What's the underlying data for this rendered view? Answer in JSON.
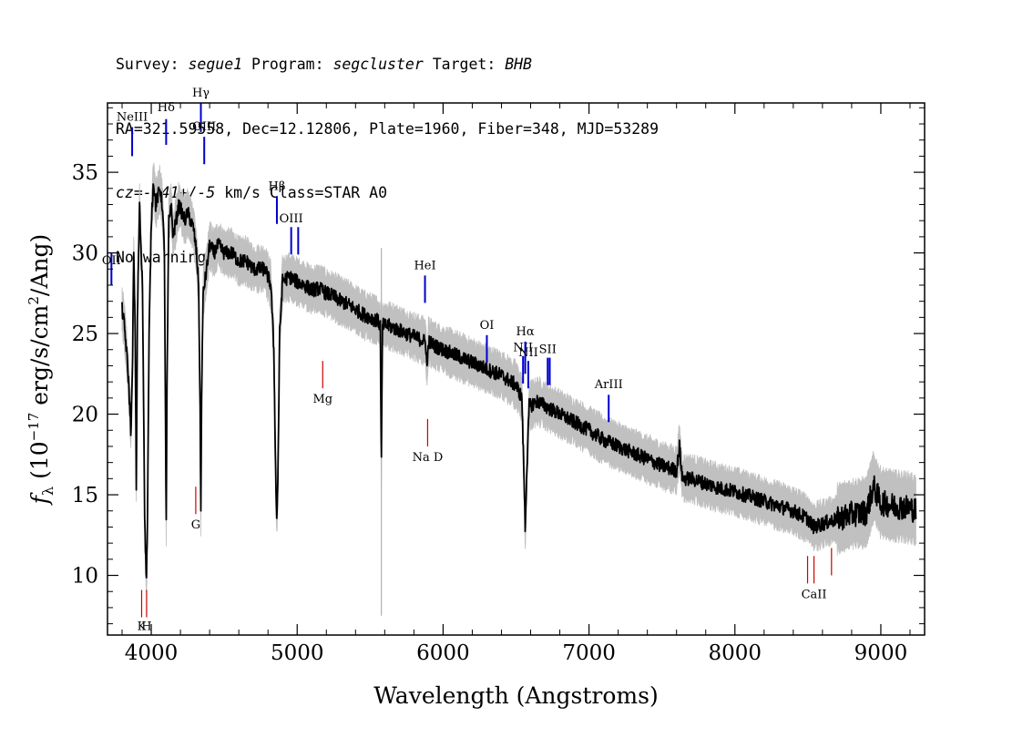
{
  "header": {
    "line1": {
      "survey_label": "Survey: ",
      "survey": "segue1",
      "program_label": " Program: ",
      "program": "segcluster",
      "target_label": " Target: ",
      "target": "BHB"
    },
    "line2": "RA=321.59558, Dec=12.12806, Plate=1960, Fiber=348, MJD=53289",
    "line3": {
      "cz": "cz=-141+/-5",
      "rest": " km/s Class=STAR A0"
    },
    "line4": "No warnings."
  },
  "chart_data": {
    "type": "line",
    "xlabel": "Wavelength (Angstroms)",
    "ylabel": "f_λ (10^-17 erg/s/cm^2/Ang)",
    "xlim": [
      3700,
      9300
    ],
    "ylim": [
      6.3,
      39.3
    ],
    "x_ticks": [
      4000,
      5000,
      6000,
      7000,
      8000,
      9000
    ],
    "y_ticks": [
      10,
      15,
      20,
      25,
      30,
      35
    ],
    "grid": false,
    "series": [
      {
        "color": "#000000",
        "points": [
          [
            3800,
            26.5
          ],
          [
            3815,
            25.5
          ],
          [
            3830,
            24
          ],
          [
            3845,
            22
          ],
          [
            3860,
            19
          ],
          [
            3870,
            22
          ],
          [
            3880,
            30
          ],
          [
            3890,
            25
          ],
          [
            3898,
            15
          ],
          [
            3905,
            26
          ],
          [
            3920,
            33
          ],
          [
            3930,
            30
          ],
          [
            3940,
            28
          ],
          [
            3955,
            14
          ],
          [
            3962,
            11
          ],
          [
            3968,
            9.8
          ],
          [
            3975,
            14
          ],
          [
            3985,
            25
          ],
          [
            4000,
            32
          ],
          [
            4015,
            34.5
          ],
          [
            4030,
            33
          ],
          [
            4045,
            33.5
          ],
          [
            4060,
            34
          ],
          [
            4075,
            33
          ],
          [
            4090,
            30
          ],
          [
            4097,
            20
          ],
          [
            4102,
            12.5
          ],
          [
            4108,
            22
          ],
          [
            4120,
            32
          ],
          [
            4135,
            33
          ],
          [
            4150,
            31
          ],
          [
            4170,
            32
          ],
          [
            4190,
            33
          ],
          [
            4210,
            32.5
          ],
          [
            4230,
            32
          ],
          [
            4250,
            32.5
          ],
          [
            4270,
            32
          ],
          [
            4290,
            31.5
          ],
          [
            4310,
            30
          ],
          [
            4325,
            28
          ],
          [
            4335,
            20
          ],
          [
            4340,
            14
          ],
          [
            4346,
            22
          ],
          [
            4356,
            27.5
          ],
          [
            4380,
            29
          ],
          [
            4400,
            30.5
          ],
          [
            4430,
            30
          ],
          [
            4460,
            30.5
          ],
          [
            4500,
            30
          ],
          [
            4550,
            30
          ],
          [
            4600,
            29.5
          ],
          [
            4650,
            29.5
          ],
          [
            4700,
            29
          ],
          [
            4750,
            29
          ],
          [
            4780,
            29
          ],
          [
            4800,
            28.5
          ],
          [
            4820,
            28
          ],
          [
            4840,
            24
          ],
          [
            4855,
            15
          ],
          [
            4861,
            13.5
          ],
          [
            4868,
            16
          ],
          [
            4880,
            25
          ],
          [
            4900,
            28.3
          ],
          [
            4950,
            28.5
          ],
          [
            5000,
            28.2
          ],
          [
            5050,
            28
          ],
          [
            5100,
            27.7
          ],
          [
            5150,
            27.8
          ],
          [
            5200,
            27.5
          ],
          [
            5250,
            27.3
          ],
          [
            5300,
            27
          ],
          [
            5350,
            26.8
          ],
          [
            5400,
            26.5
          ],
          [
            5450,
            26.2
          ],
          [
            5500,
            26
          ],
          [
            5550,
            25.8
          ],
          [
            5570,
            25.5
          ],
          [
            5577,
            16.5
          ],
          [
            5585,
            25.5
          ],
          [
            5620,
            25.5
          ],
          [
            5700,
            25.2
          ],
          [
            5800,
            24.8
          ],
          [
            5880,
            24.5
          ],
          [
            5890,
            22.8
          ],
          [
            5900,
            24.5
          ],
          [
            5950,
            24.2
          ],
          [
            6000,
            24
          ],
          [
            6100,
            23.6
          ],
          [
            6200,
            23.2
          ],
          [
            6300,
            22.8
          ],
          [
            6400,
            22.4
          ],
          [
            6500,
            21.8
          ],
          [
            6540,
            21
          ],
          [
            6555,
            16
          ],
          [
            6563,
            12.8
          ],
          [
            6572,
            16
          ],
          [
            6590,
            20.5
          ],
          [
            6650,
            20.8
          ],
          [
            6700,
            20.5
          ],
          [
            6800,
            20
          ],
          [
            6900,
            19.5
          ],
          [
            7000,
            19
          ],
          [
            7100,
            18.4
          ],
          [
            7200,
            18
          ],
          [
            7300,
            17.6
          ],
          [
            7400,
            17.2
          ],
          [
            7500,
            16.8
          ],
          [
            7600,
            16.5
          ],
          [
            7620,
            18
          ],
          [
            7640,
            16
          ],
          [
            7700,
            16
          ],
          [
            7800,
            15.7
          ],
          [
            7900,
            15.4
          ],
          [
            8000,
            15.2
          ],
          [
            8100,
            14.9
          ],
          [
            8200,
            14.6
          ],
          [
            8300,
            14.3
          ],
          [
            8400,
            14
          ],
          [
            8500,
            13.5
          ],
          [
            8540,
            13
          ],
          [
            8600,
            13.2
          ],
          [
            8700,
            13.5
          ],
          [
            8800,
            13.8
          ],
          [
            8900,
            13.9
          ],
          [
            8950,
            15.5
          ],
          [
            9000,
            14.5
          ],
          [
            9100,
            14.3
          ],
          [
            9200,
            14.2
          ],
          [
            9240,
            14
          ]
        ]
      }
    ],
    "lines": [
      {
        "label": "OII",
        "x": 3727,
        "y": [
          28,
          30
        ],
        "color": "#0000cc",
        "label_y": 29.3,
        "label_side": "above"
      },
      {
        "label": "NeIII",
        "x": 3869,
        "y": [
          36,
          37.8
        ],
        "color": "#0000cc",
        "label_y": 38.2,
        "label_side": "above"
      },
      {
        "label": "Hδ",
        "x": 4102,
        "y": [
          36.7,
          38.3
        ],
        "color": "#0000cc",
        "label_y": 38.8,
        "label_side": "above"
      },
      {
        "label": "Hγ",
        "x": 4340,
        "y": [
          37.5,
          39.3
        ],
        "color": "#0000cc",
        "label_y": 39.7,
        "label_side": "above"
      },
      {
        "label": "OIII",
        "x": 4363,
        "y": [
          35.5,
          37.2
        ],
        "color": "#0000cc",
        "label_y": 37.6,
        "label_side": "above"
      },
      {
        "label": "Hβ",
        "x": 4861,
        "y": [
          31.8,
          33.5
        ],
        "color": "#0000cc",
        "label_y": 33.9,
        "label_side": "above"
      },
      {
        "label": "OIII",
        "x": 4959,
        "y": [
          29.9,
          31.6
        ],
        "color": "#0000cc",
        "label_y": 31.9,
        "label_side": "above"
      },
      {
        "label": "",
        "x": 5007,
        "y": [
          29.9,
          31.6
        ],
        "color": "#0000cc",
        "label_y": 0,
        "label_side": "above"
      },
      {
        "label": "HeI",
        "x": 5876,
        "y": [
          26.9,
          28.6
        ],
        "color": "#0000cc",
        "label_y": 29.0,
        "label_side": "above"
      },
      {
        "label": "OI",
        "x": 6300,
        "y": [
          23.2,
          24.9
        ],
        "color": "#0000cc",
        "label_y": 25.3,
        "label_side": "above"
      },
      {
        "label": "NII",
        "x": 6548,
        "y": [
          21.9,
          23.6
        ],
        "color": "#0000cc",
        "label_y": 23.9,
        "label_side": "above"
      },
      {
        "label": "Hα",
        "x": 6563,
        "y": [
          22.5,
          24.5
        ],
        "color": "#0000cc",
        "label_y": 24.9,
        "label_side": "above"
      },
      {
        "label": "NII",
        "x": 6584,
        "y": [
          21.6,
          23.3
        ],
        "color": "#0000cc",
        "label_y": 23.6,
        "label_side": "above"
      },
      {
        "label": "SII",
        "x": 6717,
        "y": [
          21.8,
          23.5
        ],
        "color": "#0000cc",
        "label_y": 23.8,
        "label_side": "above"
      },
      {
        "label": "",
        "x": 6731,
        "y": [
          21.8,
          23.5
        ],
        "color": "#0000cc",
        "label_y": 0,
        "label_side": "above"
      },
      {
        "label": "ArIII",
        "x": 7135,
        "y": [
          19.5,
          21.2
        ],
        "color": "#0000cc",
        "label_y": 21.6,
        "label_side": "above"
      },
      {
        "label": "K",
        "x": 3934,
        "y": [
          7.4,
          9.1
        ],
        "color": "#cc0000",
        "label_y": 6.6,
        "label_side": "below"
      },
      {
        "label": "H",
        "x": 3968,
        "y": [
          7.4,
          9.1
        ],
        "color": "#cc0000",
        "label_y": 6.6,
        "label_side": "below"
      },
      {
        "label": "G",
        "x": 4305,
        "y": [
          13.8,
          15.5
        ],
        "color": "#cc0000",
        "label_y": 12.9,
        "label_side": "below"
      },
      {
        "label": "Mg",
        "x": 5175,
        "y": [
          21.6,
          23.3
        ],
        "color": "#cc0000",
        "label_y": 20.7,
        "label_side": "below"
      },
      {
        "label": "Na D",
        "x": 5894,
        "y": [
          18.0,
          19.7
        ],
        "color": "#cc0000",
        "label_y": 17.1,
        "label_side": "below"
      },
      {
        "label": "",
        "x": 8498,
        "y": [
          9.5,
          11.2
        ],
        "color": "#cc0000",
        "label_y": 0,
        "label_side": "below"
      },
      {
        "label": "CaII",
        "x": 8542,
        "y": [
          9.5,
          11.2
        ],
        "color": "#cc0000",
        "label_y": 8.6,
        "label_side": "below"
      },
      {
        "label": "",
        "x": 8662,
        "y": [
          10.0,
          11.7
        ],
        "color": "#cc0000",
        "label_y": 0,
        "label_side": "below"
      }
    ]
  }
}
